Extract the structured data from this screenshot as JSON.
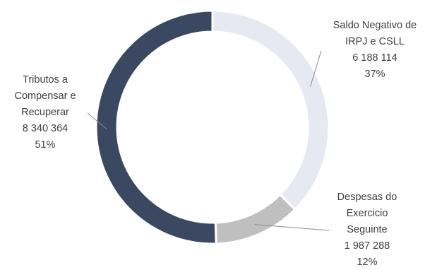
{
  "chart_data": {
    "type": "pie",
    "variant": "donut",
    "series": [
      {
        "label_lines": [
          "Saldo Negativo de",
          "IRPJ e CSLL"
        ],
        "value": 6188114,
        "value_label": "6 188 114",
        "percent": 37,
        "percent_label": "37%",
        "color": "#e6e9f2"
      },
      {
        "label_lines": [
          "Despesas do",
          "Exercicio",
          "Seguinte"
        ],
        "value": 1987288,
        "value_label": "1 987 288",
        "percent": 12,
        "percent_label": "12%",
        "color": "#bfbfbf"
      },
      {
        "label_lines": [
          "Tributos a",
          "Compensar e",
          "Recuperar"
        ],
        "value": 8340364,
        "value_label": "8 340 364",
        "percent": 51,
        "percent_label": "51%",
        "color": "#3b4861"
      }
    ],
    "legend": "none",
    "label_color": "#404040",
    "leader_color": "#8c8c8c"
  }
}
